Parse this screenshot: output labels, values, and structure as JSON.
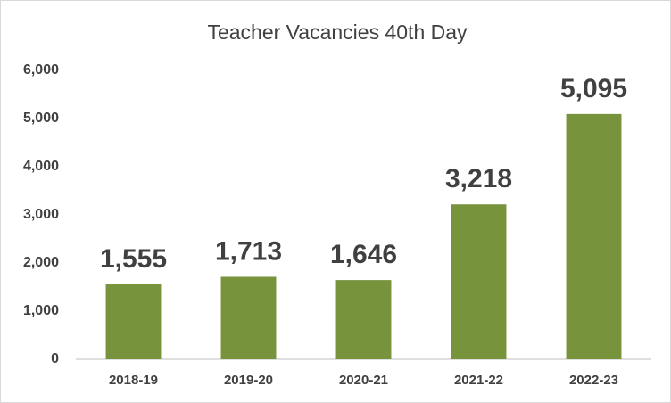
{
  "chart_data": {
    "type": "bar",
    "title": "Teacher Vacancies 40th Day",
    "categories": [
      "2018-19",
      "2019-20",
      "2020-21",
      "2021-22",
      "2022-23"
    ],
    "values": [
      1555,
      1713,
      1646,
      3218,
      5095
    ],
    "value_labels": [
      "1,555",
      "1,713",
      "1,646",
      "3,218",
      "5,095"
    ],
    "color": "#77933c",
    "ylim": [
      0,
      6000
    ],
    "yticks": [
      0,
      {
        "value": 1000,
        "label": "1,000"
      },
      {
        "value": 2000,
        "label": "2,000"
      },
      {
        "value": 3000,
        "label": "3,000"
      },
      {
        "value": 4000,
        "label": "4,000"
      },
      {
        "value": 5000,
        "label": "5,000"
      },
      {
        "value": 6000,
        "label": "6,000"
      }
    ],
    "grid": false
  }
}
